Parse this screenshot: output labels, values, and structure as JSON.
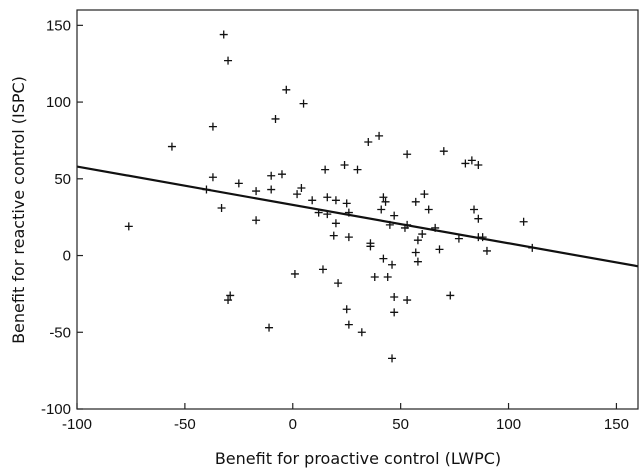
{
  "chart_data": {
    "type": "scatter",
    "xlabel": "Benefit for proactive control (LWPC)",
    "ylabel": "Benefit for reactive control (ISPC)",
    "xlim": [
      -100,
      160
    ],
    "ylim": [
      -100,
      160
    ],
    "xticks": [
      -100,
      -50,
      0,
      50,
      100,
      150
    ],
    "yticks": [
      -100,
      -50,
      0,
      50,
      100,
      150
    ],
    "grid": false,
    "legend": "none",
    "colors": {
      "points": "#111111",
      "fit_line": "#111111",
      "frame": "#222222"
    },
    "trend_line": {
      "x": [
        -100,
        160
      ],
      "y": [
        58,
        -7
      ]
    },
    "series": [
      {
        "points": [
          [
            -32,
            144
          ],
          [
            -30,
            127
          ],
          [
            -3,
            108
          ],
          [
            5,
            99
          ],
          [
            -8,
            89
          ],
          [
            -37,
            84
          ],
          [
            -56,
            71
          ],
          [
            70,
            68
          ],
          [
            53,
            66
          ],
          [
            40,
            78
          ],
          [
            35,
            74
          ],
          [
            24,
            59
          ],
          [
            30,
            56
          ],
          [
            15,
            56
          ],
          [
            -37,
            51
          ],
          [
            -25,
            47
          ],
          [
            -40,
            43
          ],
          [
            -10,
            52
          ],
          [
            -5,
            53
          ],
          [
            4,
            44
          ],
          [
            2,
            40
          ],
          [
            -10,
            43
          ],
          [
            -17,
            42
          ],
          [
            -17,
            23
          ],
          [
            -33,
            31
          ],
          [
            -76,
            19
          ],
          [
            9,
            36
          ],
          [
            16,
            38
          ],
          [
            20,
            36
          ],
          [
            25,
            34
          ],
          [
            42,
            38
          ],
          [
            43,
            35
          ],
          [
            41,
            30
          ],
          [
            47,
            26
          ],
          [
            45,
            20
          ],
          [
            57,
            35
          ],
          [
            61,
            40
          ],
          [
            63,
            30
          ],
          [
            52,
            18
          ],
          [
            53,
            20
          ],
          [
            58,
            10
          ],
          [
            60,
            14
          ],
          [
            66,
            18
          ],
          [
            68,
            4
          ],
          [
            57,
            2
          ],
          [
            58,
            -4
          ],
          [
            77,
            11
          ],
          [
            80,
            60
          ],
          [
            83,
            62
          ],
          [
            86,
            59
          ],
          [
            84,
            30
          ],
          [
            86,
            24
          ],
          [
            86,
            12
          ],
          [
            90,
            3
          ],
          [
            88,
            12
          ],
          [
            107,
            22
          ],
          [
            111,
            5
          ],
          [
            12,
            28
          ],
          [
            16,
            27
          ],
          [
            26,
            28
          ],
          [
            20,
            21
          ],
          [
            19,
            13
          ],
          [
            26,
            12
          ],
          [
            36,
            6
          ],
          [
            36,
            8
          ],
          [
            38,
            -14
          ],
          [
            42,
            -2
          ],
          [
            46,
            -6
          ],
          [
            44,
            -14
          ],
          [
            53,
            -29
          ],
          [
            47,
            -27
          ],
          [
            73,
            -26
          ],
          [
            25,
            -35
          ],
          [
            26,
            -45
          ],
          [
            32,
            -50
          ],
          [
            47,
            -37
          ],
          [
            46,
            -67
          ],
          [
            14,
            -9
          ],
          [
            21,
            -18
          ],
          [
            1,
            -12
          ],
          [
            -11,
            -47
          ],
          [
            -30,
            -29
          ],
          [
            -29,
            -26
          ]
        ]
      }
    ]
  }
}
